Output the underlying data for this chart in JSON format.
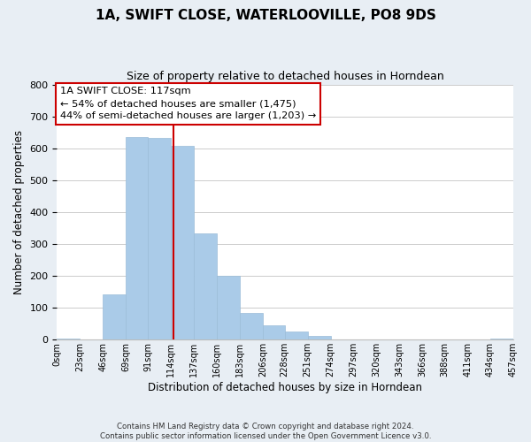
{
  "title": "1A, SWIFT CLOSE, WATERLOOVILLE, PO8 9DS",
  "subtitle": "Size of property relative to detached houses in Horndean",
  "xlabel": "Distribution of detached houses by size in Horndean",
  "ylabel": "Number of detached properties",
  "bar_edges": [
    0,
    23,
    46,
    69,
    91,
    114,
    137,
    160,
    183,
    206,
    228,
    251,
    274,
    297,
    320,
    343,
    366,
    388,
    411,
    434,
    457
  ],
  "bar_heights": [
    3,
    0,
    143,
    635,
    633,
    608,
    332,
    200,
    83,
    45,
    27,
    12,
    0,
    0,
    0,
    0,
    0,
    0,
    0,
    3
  ],
  "bar_color": "#aacbe8",
  "bar_edge_color": "#9bbdd8",
  "property_size": 117,
  "vline_color": "#cc0000",
  "annotation_line1": "1A SWIFT CLOSE: 117sqm",
  "annotation_line2": "← 54% of detached houses are smaller (1,475)",
  "annotation_line3": "44% of semi-detached houses are larger (1,203) →",
  "annotation_box_color": "#ffffff",
  "annotation_box_edge": "#cc0000",
  "ylim": [
    0,
    800
  ],
  "yticks": [
    0,
    100,
    200,
    300,
    400,
    500,
    600,
    700,
    800
  ],
  "tick_labels": [
    "0sqm",
    "23sqm",
    "46sqm",
    "69sqm",
    "91sqm",
    "114sqm",
    "137sqm",
    "160sqm",
    "183sqm",
    "206sqm",
    "228sqm",
    "251sqm",
    "274sqm",
    "297sqm",
    "320sqm",
    "343sqm",
    "366sqm",
    "388sqm",
    "411sqm",
    "434sqm",
    "457sqm"
  ],
  "footnote": "Contains HM Land Registry data © Crown copyright and database right 2024.\nContains public sector information licensed under the Open Government Licence v3.0.",
  "bg_color": "#e8eef4",
  "plot_bg_color": "#ffffff",
  "grid_color": "#cccccc"
}
